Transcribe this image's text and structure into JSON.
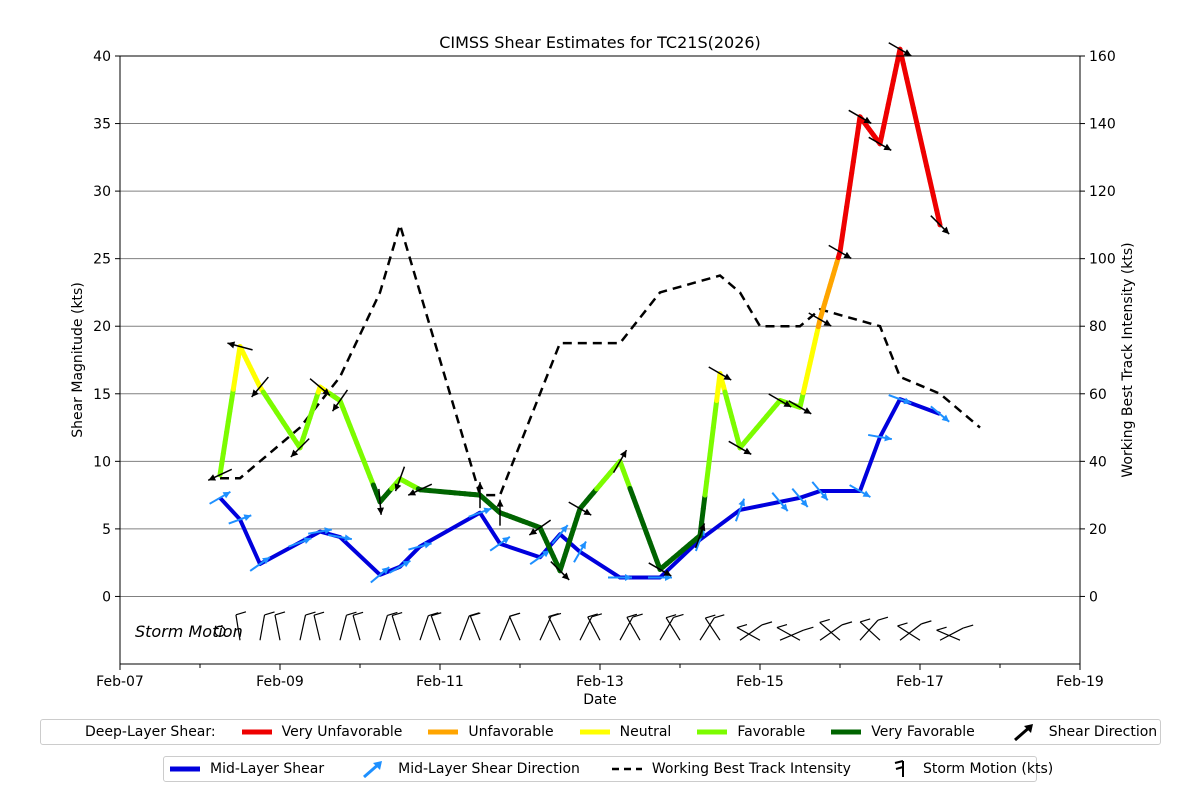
{
  "chart_data": {
    "type": "line",
    "title": "CIMSS Shear Estimates for TC21S(2026)",
    "xlabel": "Date",
    "ylabel": "Shear Magnitude (kts)",
    "y2label": "Working Best Track Intensity (kts)",
    "x_ticks": [
      "Feb-07",
      "Feb-09",
      "Feb-11",
      "Feb-13",
      "Feb-15",
      "Feb-17",
      "Feb-19"
    ],
    "x_range": [
      "2026-02-07",
      "2026-02-19"
    ],
    "ylim": [
      -5,
      40
    ],
    "y_ticks": [
      0,
      5,
      10,
      15,
      20,
      25,
      30,
      35,
      40
    ],
    "y2lim": [
      -20,
      160
    ],
    "y2_ticks": [
      0,
      20,
      40,
      60,
      80,
      100,
      120,
      140,
      160
    ],
    "grid": "horizontal",
    "annotation": "Storm Motion",
    "colors": {
      "very_unfavorable": "#ee0000",
      "unfavorable": "#ffa500",
      "neutral": "#ffff00",
      "favorable": "#7cfc00",
      "very_favorable": "#006400",
      "mid_layer": "#0000dd",
      "mid_direction": "#1e90ff",
      "intensity": "#000000"
    },
    "deep_layer_shear": [
      {
        "time": "2026-02-08 06:00",
        "value": 9.0
      },
      {
        "time": "2026-02-08 12:00",
        "value": 18.5
      },
      {
        "time": "2026-02-08 18:00",
        "value": 15.5
      },
      {
        "time": "2026-02-09 06:00",
        "value": 11.0
      },
      {
        "time": "2026-02-09 12:00",
        "value": 15.5
      },
      {
        "time": "2026-02-09 18:00",
        "value": 14.5
      },
      {
        "time": "2026-02-10 06:00",
        "value": 7.0
      },
      {
        "time": "2026-02-10 12:00",
        "value": 8.7
      },
      {
        "time": "2026-02-10 18:00",
        "value": 7.9
      },
      {
        "time": "2026-02-11 12:00",
        "value": 7.5
      },
      {
        "time": "2026-02-11 18:00",
        "value": 6.2
      },
      {
        "time": "2026-02-12 06:00",
        "value": 5.1
      },
      {
        "time": "2026-02-12 12:00",
        "value": 1.9
      },
      {
        "time": "2026-02-12 18:00",
        "value": 6.5
      },
      {
        "time": "2026-02-13 06:00",
        "value": 10.0
      },
      {
        "time": "2026-02-13 18:00",
        "value": 2.0
      },
      {
        "time": "2026-02-14 06:00",
        "value": 4.5
      },
      {
        "time": "2026-02-14 12:00",
        "value": 16.5
      },
      {
        "time": "2026-02-14 18:00",
        "value": 11.0
      },
      {
        "time": "2026-02-15 06:00",
        "value": 14.5
      },
      {
        "time": "2026-02-15 12:00",
        "value": 14.0
      },
      {
        "time": "2026-02-15 18:00",
        "value": 20.5
      },
      {
        "time": "2026-02-16 00:00",
        "value": 25.5
      },
      {
        "time": "2026-02-16 06:00",
        "value": 35.5
      },
      {
        "time": "2026-02-16 12:00",
        "value": 33.5
      },
      {
        "time": "2026-02-16 18:00",
        "value": 40.5
      },
      {
        "time": "2026-02-17 06:00",
        "value": 27.5
      }
    ],
    "deep_layer_direction_deg": [
      245,
      285,
      220,
      225,
      130,
      215,
      175,
      200,
      245,
      0,
      0,
      235,
      135,
      120,
      30,
      120,
      20,
      120,
      120,
      120,
      120,
      120,
      120,
      120,
      120,
      120,
      135
    ],
    "mid_layer_shear": [
      {
        "time": "2026-02-08 06:00",
        "value": 7.3
      },
      {
        "time": "2026-02-08 12:00",
        "value": 5.7
      },
      {
        "time": "2026-02-08 18:00",
        "value": 2.4
      },
      {
        "time": "2026-02-09 06:00",
        "value": 4.0
      },
      {
        "time": "2026-02-09 12:00",
        "value": 4.8
      },
      {
        "time": "2026-02-09 18:00",
        "value": 4.4
      },
      {
        "time": "2026-02-10 06:00",
        "value": 1.6
      },
      {
        "time": "2026-02-10 12:00",
        "value": 2.2
      },
      {
        "time": "2026-02-10 18:00",
        "value": 3.7
      },
      {
        "time": "2026-02-11 12:00",
        "value": 6.2
      },
      {
        "time": "2026-02-11 18:00",
        "value": 3.9
      },
      {
        "time": "2026-02-12 06:00",
        "value": 2.9
      },
      {
        "time": "2026-02-12 12:00",
        "value": 4.6
      },
      {
        "time": "2026-02-12 18:00",
        "value": 3.3
      },
      {
        "time": "2026-02-13 06:00",
        "value": 1.4
      },
      {
        "time": "2026-02-13 18:00",
        "value": 1.4
      },
      {
        "time": "2026-02-14 06:00",
        "value": 4.2
      },
      {
        "time": "2026-02-14 18:00",
        "value": 6.4
      },
      {
        "time": "2026-02-15 06:00",
        "value": 7.0
      },
      {
        "time": "2026-02-15 12:00",
        "value": 7.3
      },
      {
        "time": "2026-02-15 18:00",
        "value": 7.8
      },
      {
        "time": "2026-02-16 06:00",
        "value": 7.8
      },
      {
        "time": "2026-02-16 12:00",
        "value": 11.8
      },
      {
        "time": "2026-02-16 18:00",
        "value": 14.6
      },
      {
        "time": "2026-02-17 06:00",
        "value": 13.5
      }
    ],
    "mid_layer_direction_deg": [
      60,
      70,
      55,
      70,
      80,
      100,
      50,
      60,
      75,
      70,
      55,
      55,
      40,
      30,
      90,
      90,
      20,
      20,
      140,
      140,
      140,
      120,
      100,
      110,
      130
    ],
    "working_best_track_intensity": [
      {
        "time": "2026-02-08 06:00",
        "value": 35
      },
      {
        "time": "2026-02-08 12:00",
        "value": 35
      },
      {
        "time": "2026-02-09 06:00",
        "value": 50
      },
      {
        "time": "2026-02-09 18:00",
        "value": 65
      },
      {
        "time": "2026-02-10 06:00",
        "value": 90
      },
      {
        "time": "2026-02-10 12:00",
        "value": 110
      },
      {
        "time": "2026-02-11 12:00",
        "value": 30
      },
      {
        "time": "2026-02-11 18:00",
        "value": 30
      },
      {
        "time": "2026-02-12 06:00",
        "value": 60
      },
      {
        "time": "2026-02-12 12:00",
        "value": 75
      },
      {
        "time": "2026-02-13 06:00",
        "value": 75
      },
      {
        "time": "2026-02-13 18:00",
        "value": 90
      },
      {
        "time": "2026-02-14 12:00",
        "value": 95
      },
      {
        "time": "2026-02-14 18:00",
        "value": 90
      },
      {
        "time": "2026-02-15 00:00",
        "value": 80
      },
      {
        "time": "2026-02-15 12:00",
        "value": 80
      },
      {
        "time": "2026-02-15 18:00",
        "value": 85
      },
      {
        "time": "2026-02-16 12:00",
        "value": 80
      },
      {
        "time": "2026-02-16 18:00",
        "value": 65
      },
      {
        "time": "2026-02-17 06:00",
        "value": 60
      },
      {
        "time": "2026-02-17 18:00",
        "value": 50
      }
    ],
    "storm_motion_times": [
      "2026-02-08 12:00",
      "2026-02-08 18:00",
      "2026-02-09 00:00",
      "2026-02-09 06:00",
      "2026-02-09 12:00",
      "2026-02-09 18:00",
      "2026-02-10 00:00",
      "2026-02-10 06:00",
      "2026-02-10 12:00",
      "2026-02-10 18:00",
      "2026-02-11 00:00",
      "2026-02-11 06:00",
      "2026-02-11 12:00",
      "2026-02-11 18:00",
      "2026-02-12 00:00",
      "2026-02-12 06:00",
      "2026-02-12 12:00",
      "2026-02-12 18:00",
      "2026-02-13 00:00",
      "2026-02-13 06:00",
      "2026-02-13 12:00",
      "2026-02-13 18:00",
      "2026-02-14 00:00",
      "2026-02-14 06:00",
      "2026-02-14 12:00",
      "2026-02-14 18:00",
      "2026-02-15 00:00",
      "2026-02-15 06:00",
      "2026-02-15 12:00",
      "2026-02-15 18:00",
      "2026-02-16 00:00",
      "2026-02-16 06:00",
      "2026-02-16 12:00",
      "2026-02-16 18:00",
      "2026-02-17 00:00",
      "2026-02-17 06:00",
      "2026-02-17 12:00"
    ],
    "legend_deep_layer": {
      "title": "Deep-Layer Shear:",
      "items": [
        {
          "label": "Very Unfavorable",
          "color": "#ee0000",
          "kind": "line"
        },
        {
          "label": "Unfavorable",
          "color": "#ffa500",
          "kind": "line"
        },
        {
          "label": "Neutral",
          "color": "#ffff00",
          "kind": "line"
        },
        {
          "label": "Favorable",
          "color": "#7cfc00",
          "kind": "line"
        },
        {
          "label": "Very Favorable",
          "color": "#006400",
          "kind": "line"
        },
        {
          "label": "Shear Direction",
          "color": "#000000",
          "kind": "arrow"
        }
      ]
    },
    "legend_mid_layer": {
      "items": [
        {
          "label": "Mid-Layer Shear",
          "color": "#0000dd",
          "kind": "line"
        },
        {
          "label": "Mid-Layer Shear Direction",
          "color": "#1e90ff",
          "kind": "arrow"
        },
        {
          "label": "Working Best Track Intensity",
          "color": "#000000",
          "kind": "dashed"
        },
        {
          "label": "Storm Motion (kts)",
          "color": "#000000",
          "kind": "barb"
        }
      ]
    }
  }
}
